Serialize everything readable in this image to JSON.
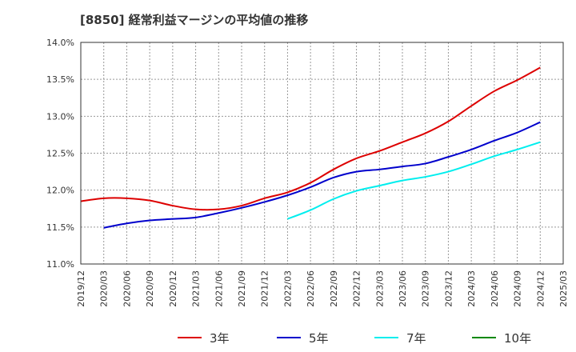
{
  "title": "[8850]  経常利益マージンの平均値の推移",
  "chart_data": {
    "type": "line",
    "title": "[8850]  経常利益マージンの平均値の推移",
    "xlabel": "",
    "ylabel": "",
    "categories": [
      "2019/12",
      "2020/03",
      "2020/06",
      "2020/09",
      "2020/12",
      "2021/03",
      "2021/06",
      "2021/09",
      "2021/12",
      "2022/03",
      "2022/06",
      "2022/09",
      "2022/12",
      "2023/03",
      "2023/06",
      "2023/09",
      "2023/12",
      "2024/03",
      "2024/06",
      "2024/09",
      "2024/12",
      "2025/03"
    ],
    "y_ticks": [
      "11.0%",
      "11.5%",
      "12.0%",
      "12.5%",
      "13.0%",
      "13.5%",
      "14.0%"
    ],
    "ylim": [
      11.0,
      14.0
    ],
    "grid": true,
    "legend_position": "bottom",
    "series": [
      {
        "name": "3年",
        "color": "#dd0000",
        "values": [
          11.85,
          11.89,
          11.89,
          11.86,
          11.79,
          11.74,
          11.74,
          11.79,
          11.89,
          11.97,
          12.1,
          12.28,
          12.43,
          12.53,
          12.65,
          12.77,
          12.93,
          13.14,
          13.34,
          13.49,
          13.66,
          null
        ]
      },
      {
        "name": "5年",
        "color": "#0000cc",
        "values": [
          null,
          11.49,
          11.55,
          11.59,
          11.61,
          11.63,
          11.69,
          11.76,
          11.84,
          11.93,
          12.04,
          12.17,
          12.25,
          12.28,
          12.32,
          12.36,
          12.45,
          12.55,
          12.67,
          12.78,
          12.92,
          null
        ]
      },
      {
        "name": "7年",
        "color": "#00eeee",
        "values": [
          null,
          null,
          null,
          null,
          null,
          null,
          null,
          null,
          null,
          11.61,
          11.73,
          11.88,
          11.99,
          12.06,
          12.13,
          12.18,
          12.25,
          12.35,
          12.46,
          12.55,
          12.65,
          null
        ]
      },
      {
        "name": "10年",
        "color": "#008800",
        "values": [
          null,
          null,
          null,
          null,
          null,
          null,
          null,
          null,
          null,
          null,
          null,
          null,
          null,
          null,
          null,
          null,
          null,
          null,
          null,
          null,
          null,
          null
        ]
      }
    ]
  }
}
